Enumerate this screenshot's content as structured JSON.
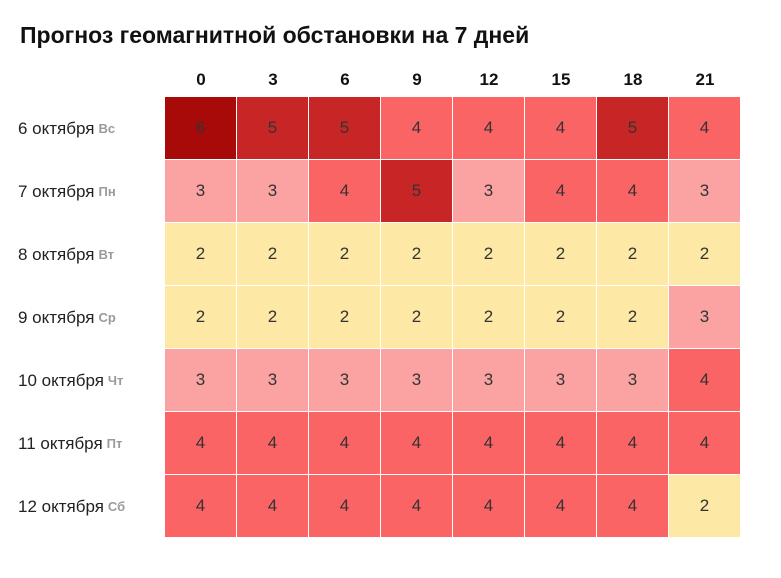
{
  "chart_data": {
    "type": "heatmap",
    "title": "Прогноз геомагнитной обстановки на 7 дней",
    "x": [
      "0",
      "3",
      "6",
      "9",
      "12",
      "15",
      "18",
      "21"
    ],
    "rows": [
      {
        "date": "6 октября",
        "weekday": "Вс",
        "values": [
          6,
          5,
          5,
          4,
          4,
          4,
          5,
          4
        ]
      },
      {
        "date": "7 октября",
        "weekday": "Пн",
        "values": [
          3,
          3,
          4,
          5,
          3,
          4,
          4,
          3
        ]
      },
      {
        "date": "8 октября",
        "weekday": "Вт",
        "values": [
          2,
          2,
          2,
          2,
          2,
          2,
          2,
          2
        ]
      },
      {
        "date": "9 октября",
        "weekday": "Ср",
        "values": [
          2,
          2,
          2,
          2,
          2,
          2,
          2,
          3
        ]
      },
      {
        "date": "10 октября",
        "weekday": "Чт",
        "values": [
          3,
          3,
          3,
          3,
          3,
          3,
          3,
          4
        ]
      },
      {
        "date": "11 октября",
        "weekday": "Пт",
        "values": [
          4,
          4,
          4,
          4,
          4,
          4,
          4,
          4
        ]
      },
      {
        "date": "12 октября",
        "weekday": "Сб",
        "values": [
          4,
          4,
          4,
          4,
          4,
          4,
          4,
          2
        ]
      }
    ],
    "colors": {
      "2": "#fde8a6",
      "3": "#fba3a3",
      "4": "#fa6464",
      "5": "#c82626",
      "6": "#a80a0a"
    }
  }
}
